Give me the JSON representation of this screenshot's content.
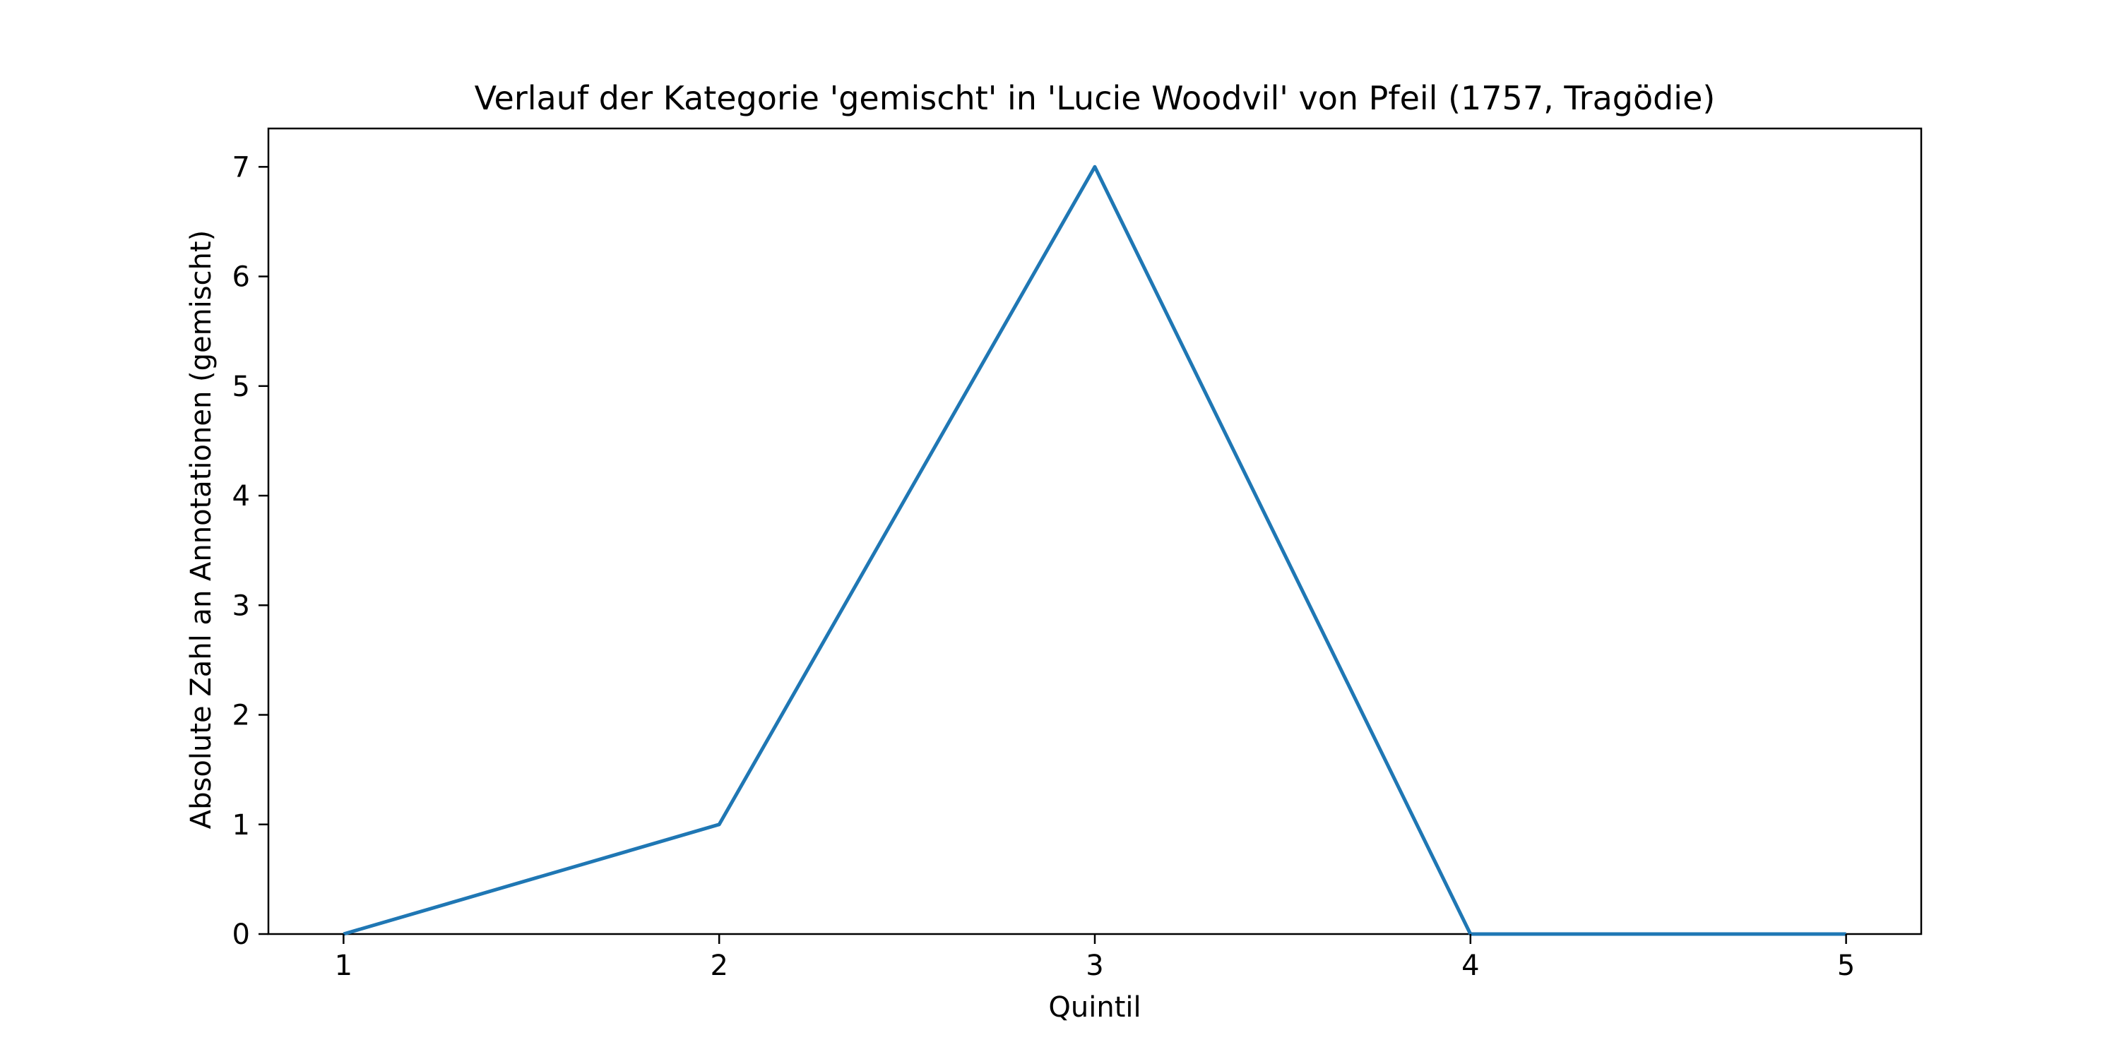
{
  "chart_data": {
    "type": "line",
    "title": "Verlauf der Kategorie 'gemischt' in 'Lucie Woodvil' von Pfeil (1757, Tragödie)",
    "xlabel": "Quintil",
    "ylabel": "Absolute Zahl an Annotationen (gemischt)",
    "x": [
      1,
      2,
      3,
      4,
      5
    ],
    "x_tick_labels": [
      "1",
      "2",
      "3",
      "4",
      "5"
    ],
    "y_tick_values": [
      0,
      1,
      2,
      3,
      4,
      5,
      6,
      7
    ],
    "y_tick_labels": [
      "0",
      "1",
      "2",
      "3",
      "4",
      "5",
      "6",
      "7"
    ],
    "xlim": [
      0.8,
      5.2
    ],
    "ylim": [
      0,
      7.35
    ],
    "grid": false,
    "series": [
      {
        "values": [
          0,
          1,
          7,
          0,
          0
        ],
        "color": "#1f77b4"
      }
    ]
  }
}
